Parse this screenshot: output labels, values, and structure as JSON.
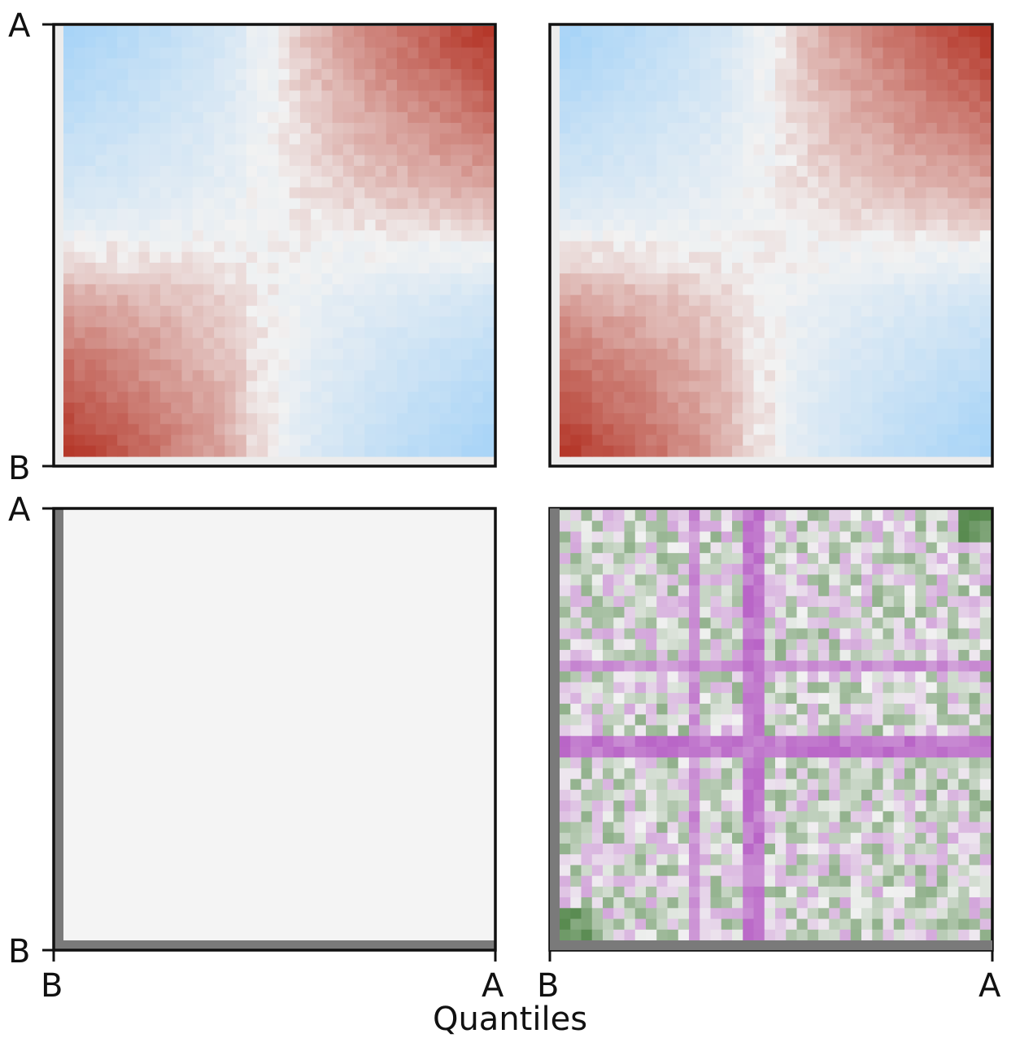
{
  "chart_data": [
    {
      "type": "heatmap",
      "panel": "top-left",
      "y_ticks": [
        "A",
        "B"
      ],
      "x_ticks": [],
      "colormap": "diverging blue-white-red",
      "colors": {
        "low": "#a8d4f7",
        "mid": "#f2f2f2",
        "high": "#b5382a"
      },
      "grid_size": 40,
      "value_range": [
        -1,
        1
      ],
      "pattern": "A-A block high (red, darkest at top-right corner), B-B block high (red, darkest at bottom-left corner), A-B off-diagonal low (blue); pale cross band near the middle"
    },
    {
      "type": "heatmap",
      "panel": "top-right",
      "y_ticks": [],
      "x_ticks": [],
      "colormap": "diverging blue-white-red",
      "colors": {
        "low": "#a8d4f7",
        "mid": "#f2f2f2",
        "high": "#b5382a"
      },
      "grid_size": 40,
      "value_range": [
        -1,
        1
      ],
      "pattern": "same block structure as top-left, slightly stronger contrast"
    },
    {
      "type": "heatmap",
      "panel": "bottom-left",
      "y_ticks": [
        "A",
        "B"
      ],
      "x_ticks": [
        "B",
        "A"
      ],
      "colormap": "uniform",
      "colors": {
        "fill": "#f4f4f4",
        "edge": "#7a7a7a"
      },
      "pattern": "uniform light gray (zero difference)"
    },
    {
      "type": "heatmap",
      "panel": "bottom-right",
      "y_ticks": [],
      "x_ticks": [
        "B",
        "A"
      ],
      "colormap": "diverging green-white-magenta",
      "colors": {
        "low": "#3f7a35",
        "mid": "#f2f2f2",
        "high": "#b04fc0"
      },
      "grid_size": 40,
      "value_range": [
        -1,
        1
      ],
      "pattern": "noisy difference map, mostly pale green and pale pink, magenta cross bands near the middle, dark green corner cells"
    }
  ],
  "footer": {
    "clipped_text": "Quantiles"
  }
}
